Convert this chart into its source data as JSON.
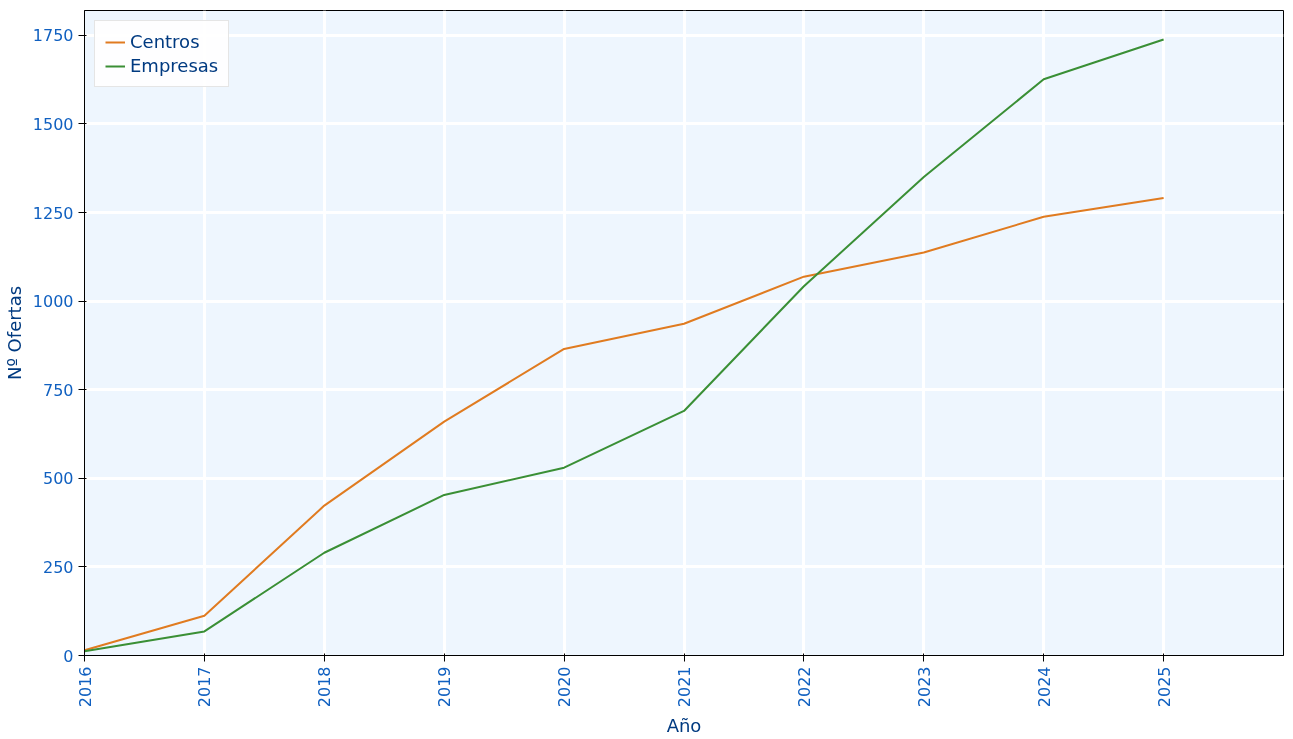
{
  "chart_data": {
    "type": "line",
    "xlabel": "Año",
    "ylabel": "Nº Ofertas",
    "x": [
      2016,
      2017,
      2018,
      2019,
      2020,
      2021,
      2022,
      2023,
      2024,
      2025
    ],
    "series": [
      {
        "name": "Centros",
        "color": "#e07b20",
        "values": [
          15,
          112,
          423,
          660,
          865,
          936,
          1069,
          1137,
          1238,
          1291
        ]
      },
      {
        "name": "Empresas",
        "color": "#3a8f35",
        "values": [
          12,
          68,
          290,
          453,
          530,
          690,
          1042,
          1350,
          1626,
          1738
        ]
      }
    ],
    "xlim": [
      2016,
      2026
    ],
    "xticks": [
      2016,
      2017,
      2018,
      2019,
      2020,
      2021,
      2022,
      2023,
      2024,
      2025
    ],
    "ylim": [
      0,
      1820
    ],
    "yticks": [
      0,
      250,
      500,
      750,
      1000,
      1250,
      1500,
      1750
    ],
    "grid": true,
    "legend": "top left",
    "line_style": "solid",
    "marker": "none"
  }
}
